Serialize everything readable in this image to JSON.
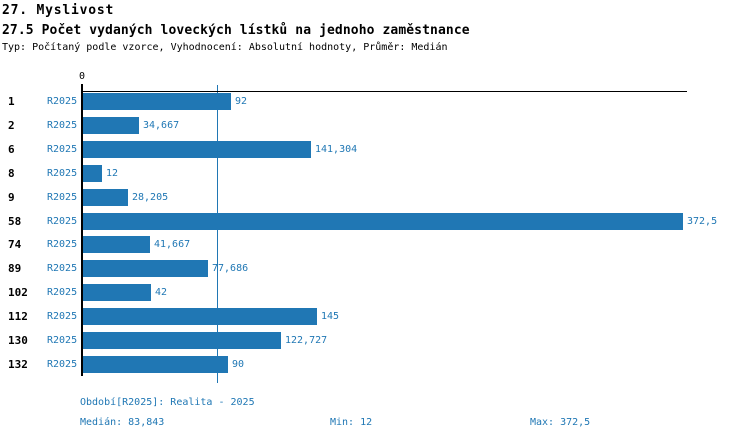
{
  "header": {
    "chapter_title": "27. Myslivost",
    "indicator_title": "27.5 Počet vydaných loveckých lístků na jednoho zaměstnance",
    "subtitle": "Typ: Počítaný podle vzorce, Vyhodnocení: Absolutní hodnoty, Průměr: Medián"
  },
  "chart_data": {
    "type": "bar",
    "orientation": "horizontal",
    "title": "27.5 Počet vydaných loveckých lístků na jednoho zaměstnance",
    "xlabel": "",
    "ylabel": "",
    "axis": {
      "origin_label": "0",
      "min": 0,
      "max": 372.5
    },
    "grid": "median-line-only",
    "series_label": "R2025",
    "categories": [
      "1",
      "2",
      "6",
      "8",
      "9",
      "58",
      "74",
      "89",
      "102",
      "112",
      "130",
      "132"
    ],
    "values": [
      92,
      34.667,
      141.304,
      12,
      28.205,
      372.5,
      41.667,
      77.686,
      42,
      145,
      122.727,
      90
    ],
    "value_labels": [
      "92",
      "34,667",
      "141,304",
      "12",
      "28,205",
      "372,5",
      "41,667",
      "77,686",
      "42",
      "145",
      "122,727",
      "90"
    ],
    "median": 83.843,
    "colors": {
      "bar": "#2077b4",
      "text_accent": "#1f77b4",
      "median_line": "#2077b4",
      "axis": "#000000"
    }
  },
  "footer": {
    "period": "Období[R2025]: Realita - 2025",
    "median": "Medián: 83,843",
    "min": "Min: 12",
    "max": "Max: 372,5"
  }
}
